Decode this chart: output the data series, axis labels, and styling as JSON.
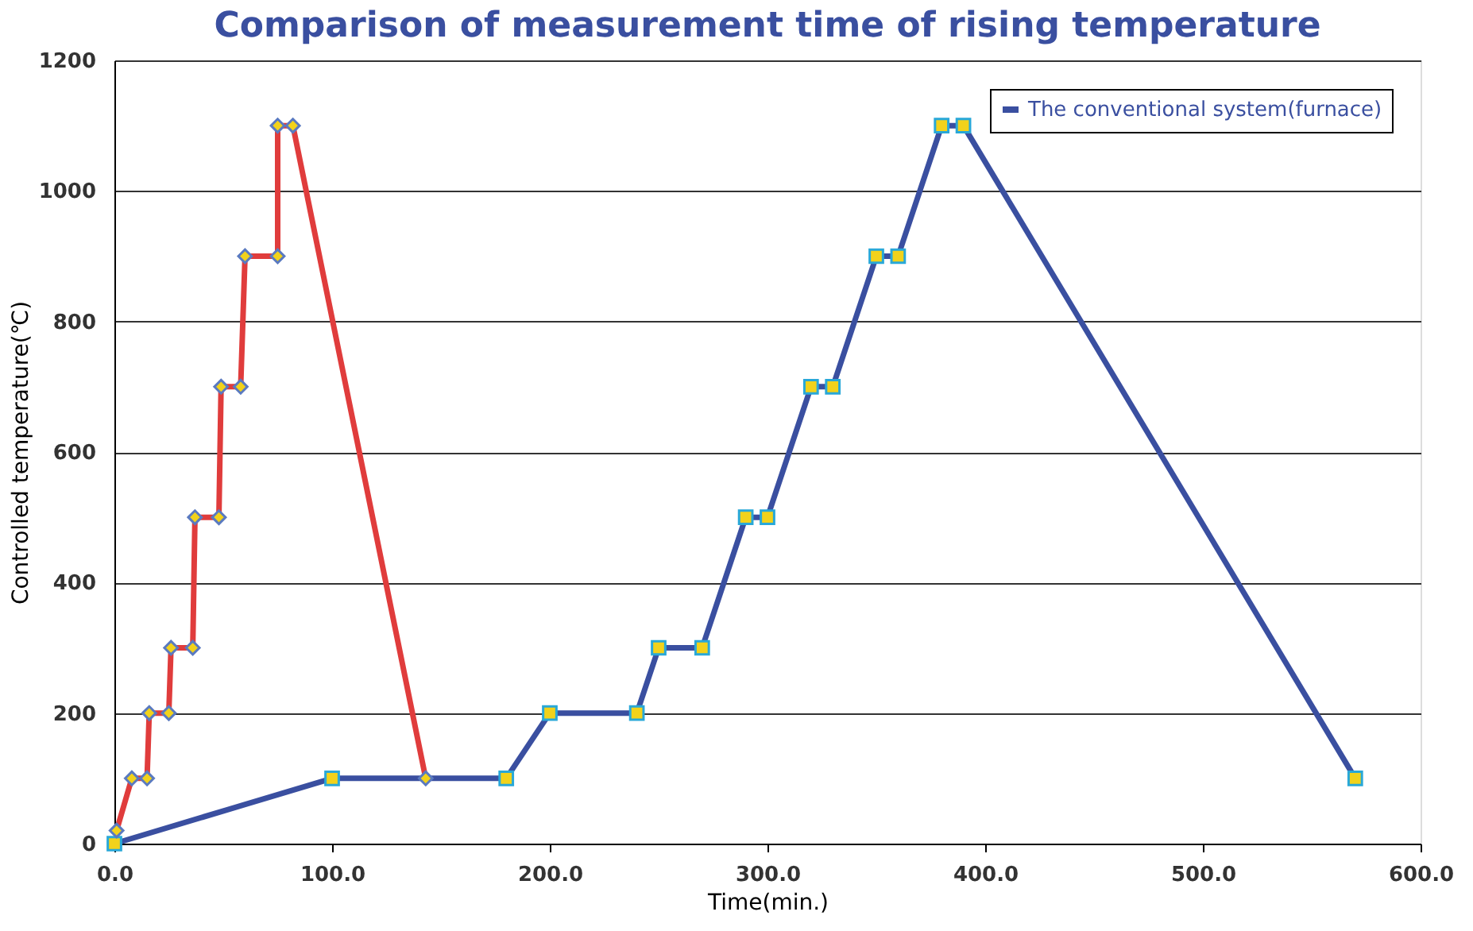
{
  "chart_data": {
    "type": "line",
    "title": "Comparison of measurement time of rising temperature",
    "xlabel": "Time(min.)",
    "ylabel": "Controlled temperature(℃)",
    "xlim": [
      0,
      600
    ],
    "xticks": [
      {
        "value": 0,
        "label": "0.0"
      },
      {
        "value": 100,
        "label": "100.0"
      },
      {
        "value": 200,
        "label": "200.0"
      },
      {
        "value": 300,
        "label": "300.0"
      },
      {
        "value": 400,
        "label": "400.0"
      },
      {
        "value": 500,
        "label": "500.0"
      },
      {
        "value": 600,
        "label": "600.0"
      }
    ],
    "ylim": [
      0,
      1200
    ],
    "yticks": [
      0,
      200,
      400,
      600,
      800,
      1000,
      1200
    ],
    "grid": "y",
    "legend": "top right",
    "line_style": "solid",
    "series": [
      {
        "color": "#e03c3c",
        "marker": "diamond",
        "x": [
          1,
          8,
          15,
          16,
          25,
          26,
          36,
          37,
          48,
          49,
          58,
          60,
          75,
          75,
          82,
          143
        ],
        "values": [
          20,
          100,
          100,
          200,
          200,
          300,
          300,
          500,
          500,
          700,
          700,
          900,
          900,
          1100,
          1100,
          100
        ]
      },
      {
        "name": "The conventional system(furnace)",
        "color": "#3a4fa0",
        "marker": "square",
        "x": [
          0,
          100,
          180,
          200,
          240,
          250,
          270,
          290,
          300,
          320,
          330,
          350,
          360,
          380,
          390,
          570
        ],
        "values": [
          0,
          100,
          100,
          200,
          200,
          300,
          300,
          500,
          500,
          700,
          700,
          900,
          900,
          1100,
          1100,
          100
        ]
      }
    ]
  }
}
